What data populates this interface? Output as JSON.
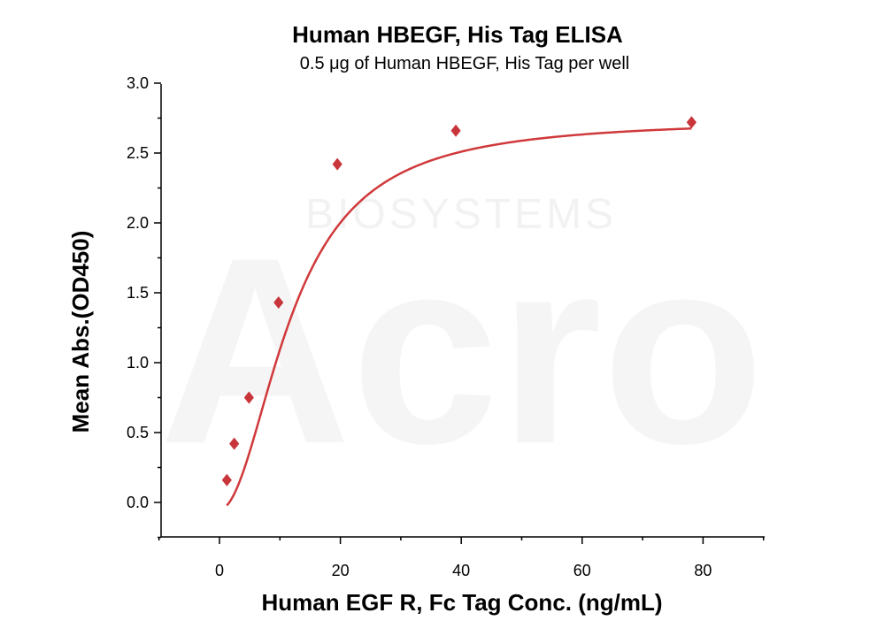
{
  "chart_data": {
    "type": "scatter",
    "title": "Human HBEGF, His Tag ELISA",
    "subtitle": "0.5 μg of Human HBEGF, His Tag per well",
    "xlabel": "Human EGF R, Fc Tag Conc. (ng/mL)",
    "ylabel": "Mean Abs.(OD450)",
    "xlim": [
      -10,
      90
    ],
    "ylim": [
      -0.25,
      3.0
    ],
    "xticks": [
      0,
      20,
      40,
      60,
      80
    ],
    "yticks": [
      0.0,
      0.5,
      1.0,
      1.5,
      2.0,
      2.5,
      3.0
    ],
    "xtick_labels": [
      "0",
      "20",
      "40",
      "60",
      "80"
    ],
    "ytick_labels": [
      "0.0",
      "0.5",
      "1.0",
      "1.5",
      "2.0",
      "2.5",
      "3.0"
    ],
    "series": [
      {
        "x": [
          1.22,
          2.44,
          4.88,
          9.77,
          19.5,
          39.1,
          78.1
        ],
        "y": [
          0.16,
          0.42,
          0.75,
          1.43,
          2.42,
          2.66,
          2.72
        ],
        "marker": "diamond",
        "color": "#c8353a"
      }
    ],
    "fit_curve": {
      "model": "4PL",
      "bottom": -0.05,
      "top": 2.74,
      "ec50": 12.0,
      "hill": 2.0,
      "color": "#d0393b"
    },
    "grid": false,
    "legend": "none"
  },
  "watermark": {
    "text": "BIOSYSTEMS",
    "logo": "Acro"
  }
}
